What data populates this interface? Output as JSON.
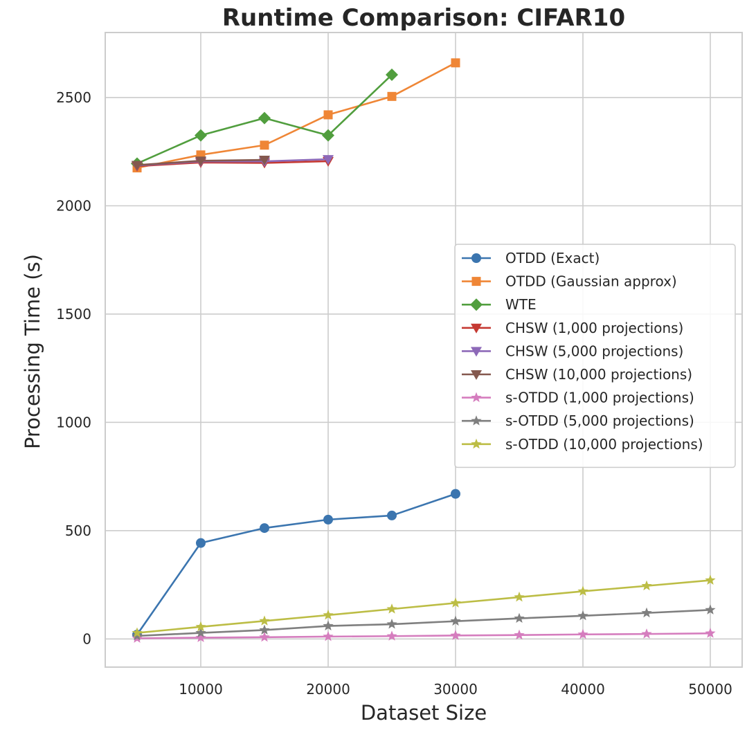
{
  "chart_data": {
    "type": "line",
    "title": "Runtime Comparison: CIFAR10",
    "xlabel": "Dataset Size",
    "ylabel": "Processing Time (s)",
    "xlim": [
      2500,
      52500
    ],
    "ylim": [
      -130,
      2800
    ],
    "x_ticks": [
      10000,
      20000,
      30000,
      40000,
      50000
    ],
    "y_ticks": [
      0,
      500,
      1000,
      1500,
      2000,
      2500
    ],
    "grid": true,
    "legend_position": "center-right",
    "series": [
      {
        "name": "OTDD (Exact)",
        "color": "#3b75af",
        "marker": "circle",
        "x": [
          5000,
          10000,
          15000,
          20000,
          25000,
          30000
        ],
        "values": [
          20,
          443,
          512,
          551,
          570,
          670
        ]
      },
      {
        "name": "OTDD (Gaussian approx)",
        "color": "#ef8636",
        "marker": "square",
        "x": [
          5000,
          10000,
          15000,
          20000,
          25000,
          30000
        ],
        "values": [
          2175,
          2235,
          2280,
          2420,
          2505,
          2660
        ]
      },
      {
        "name": "WTE",
        "color": "#519e3e",
        "marker": "diamond",
        "x": [
          5000,
          10000,
          15000,
          20000,
          25000
        ],
        "values": [
          2195,
          2325,
          2405,
          2325,
          2605
        ]
      },
      {
        "name": "CHSW (1,000 projections)",
        "color": "#c53932",
        "marker": "triangle-down",
        "x": [
          5000,
          10000,
          15000,
          20000
        ],
        "values": [
          2183,
          2200,
          2198,
          2206
        ]
      },
      {
        "name": "CHSW (5,000 projections)",
        "color": "#8d69b8",
        "marker": "triangle-down",
        "x": [
          5000,
          10000,
          15000,
          20000
        ],
        "values": [
          2186,
          2205,
          2205,
          2215
        ]
      },
      {
        "name": "CHSW (10,000 projections)",
        "color": "#84584e",
        "marker": "triangle-down",
        "x": [
          5000,
          10000,
          15000
        ],
        "values": [
          2188,
          2208,
          2212
        ]
      },
      {
        "name": "s-OTDD (1,000 projections)",
        "color": "#d57dbe",
        "marker": "star",
        "x": [
          5000,
          10000,
          15000,
          20000,
          25000,
          30000,
          35000,
          40000,
          45000,
          50000
        ],
        "values": [
          3,
          6,
          8,
          11,
          13,
          16,
          18,
          21,
          23,
          26
        ]
      },
      {
        "name": "s-OTDD (5,000 projections)",
        "color": "#7f7f7f",
        "marker": "star",
        "x": [
          5000,
          10000,
          15000,
          20000,
          25000,
          30000,
          35000,
          40000,
          45000,
          50000
        ],
        "values": [
          14,
          28,
          41,
          60,
          68,
          82,
          95,
          107,
          120,
          134
        ]
      },
      {
        "name": "s-OTDD (10,000 projections)",
        "color": "#bcbd45",
        "marker": "star",
        "x": [
          5000,
          10000,
          15000,
          20000,
          25000,
          30000,
          35000,
          40000,
          45000,
          50000
        ],
        "values": [
          28,
          56,
          83,
          110,
          138,
          166,
          193,
          220,
          245,
          271
        ]
      }
    ]
  }
}
